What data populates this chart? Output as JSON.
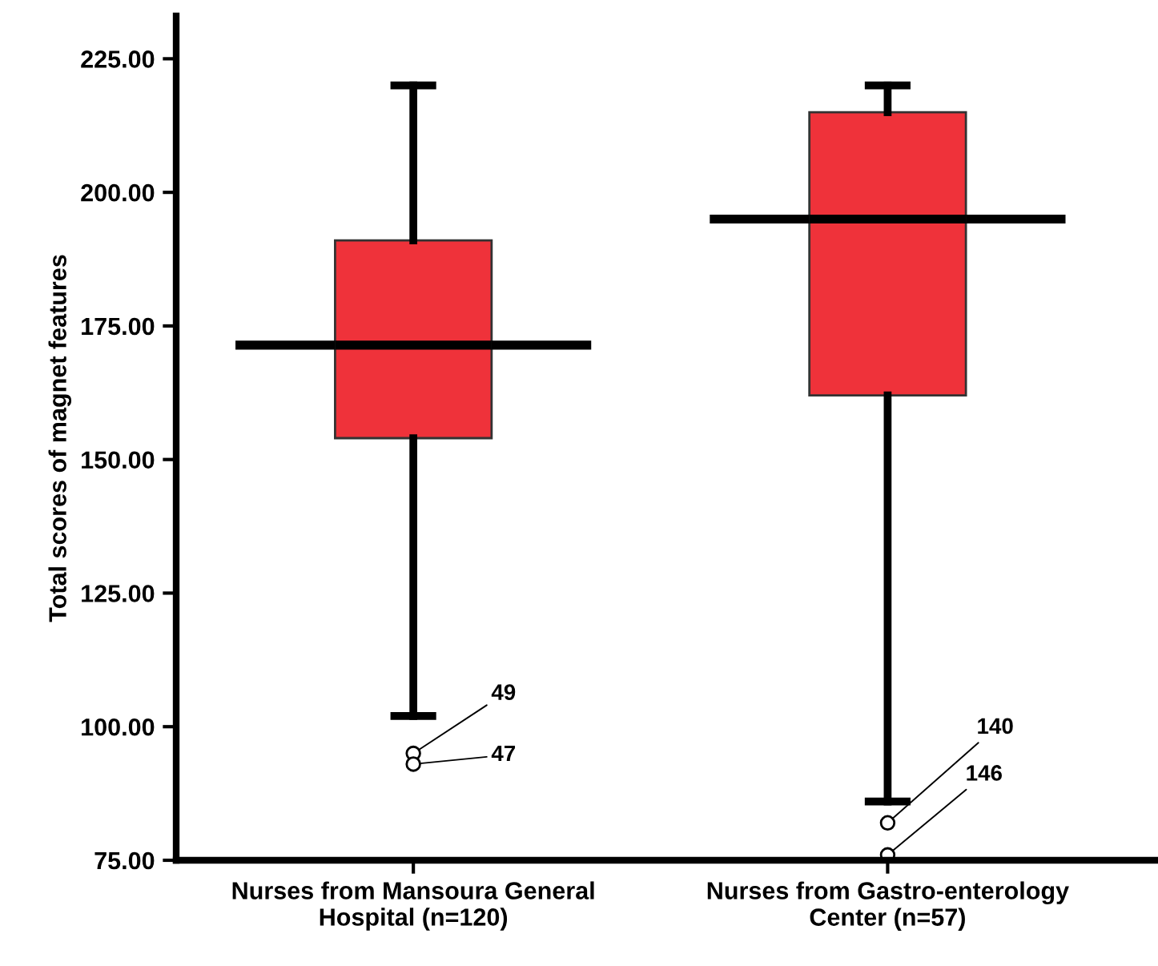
{
  "chart_data": {
    "type": "box",
    "ylabel": "Total scores of magnet features",
    "categories": [
      "Nurses from Mansoura General\nHospital (n=120)",
      "Nurses from Gastro-enterology\nCenter (n=57)"
    ],
    "boxes": [
      {
        "low": 102,
        "q1": 154,
        "median": 171.4,
        "q3": 191,
        "high": 220,
        "outliers": [
          95,
          93
        ]
      },
      {
        "low": 86,
        "q1": 162,
        "median": 195,
        "q3": 215,
        "high": 220,
        "outliers": [
          82,
          76
        ]
      }
    ],
    "color": "#ef323a",
    "ylim": [
      75,
      233
    ],
    "yticks": [
      {
        "value": 75,
        "label": "75.00"
      },
      {
        "value": 100,
        "label": "100.00"
      },
      {
        "value": 125,
        "label": "125.00"
      },
      {
        "value": 150,
        "label": "150.00"
      },
      {
        "value": 175,
        "label": "175.00"
      },
      {
        "value": 200,
        "label": "200.00"
      },
      {
        "value": 225,
        "label": "225.00"
      }
    ],
    "annotations": [
      "49",
      "47",
      "140",
      "146"
    ],
    "grid": false,
    "legend": false
  }
}
